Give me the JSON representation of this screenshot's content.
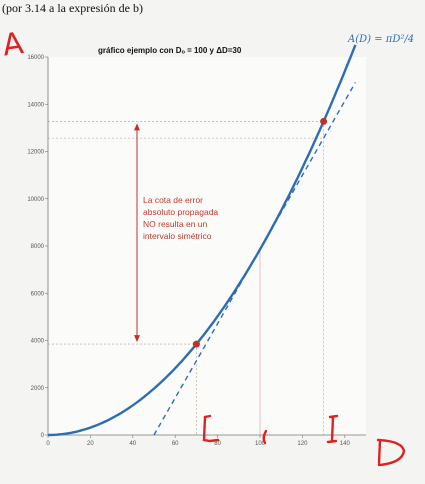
{
  "header": {
    "text": "(por 3.14 a la expresión de b)"
  },
  "chart_data": {
    "type": "line",
    "title": "gráfico ejemplo con Dₒ = 100 y ΔD=30",
    "xlabel": "D",
    "ylabel": "A",
    "formula": "A(D) = πD²/4",
    "xlim": [
      0,
      150
    ],
    "ylim": [
      0,
      16000
    ],
    "x_ticks": [
      0,
      20,
      40,
      60,
      80,
      100,
      120,
      140
    ],
    "y_ticks": [
      0,
      2000,
      4000,
      6000,
      8000,
      10000,
      12000,
      14000,
      16000
    ],
    "grid": false,
    "series": [
      {
        "function": "pi*D^2/4",
        "x_range": [
          0,
          145
        ],
        "color": "#2d6db3",
        "style": "solid"
      }
    ],
    "tangent": {
      "at_x": 100,
      "color": "#2d6db3",
      "style": "dashed"
    },
    "points": [
      {
        "x": 70,
        "y": 3848,
        "color": "#c0302b"
      },
      {
        "x": 130,
        "y": 13273,
        "color": "#c0302b"
      }
    ],
    "annotation": {
      "lines": [
        "La cota de error",
        "absoluto propagada",
        "NO resulta en un",
        "intervalo simétrico"
      ],
      "arrow_y_range": [
        3848,
        13273
      ]
    },
    "hand_marks": {
      "y_axis_letter": "A",
      "x_axis_letter": "D"
    }
  }
}
